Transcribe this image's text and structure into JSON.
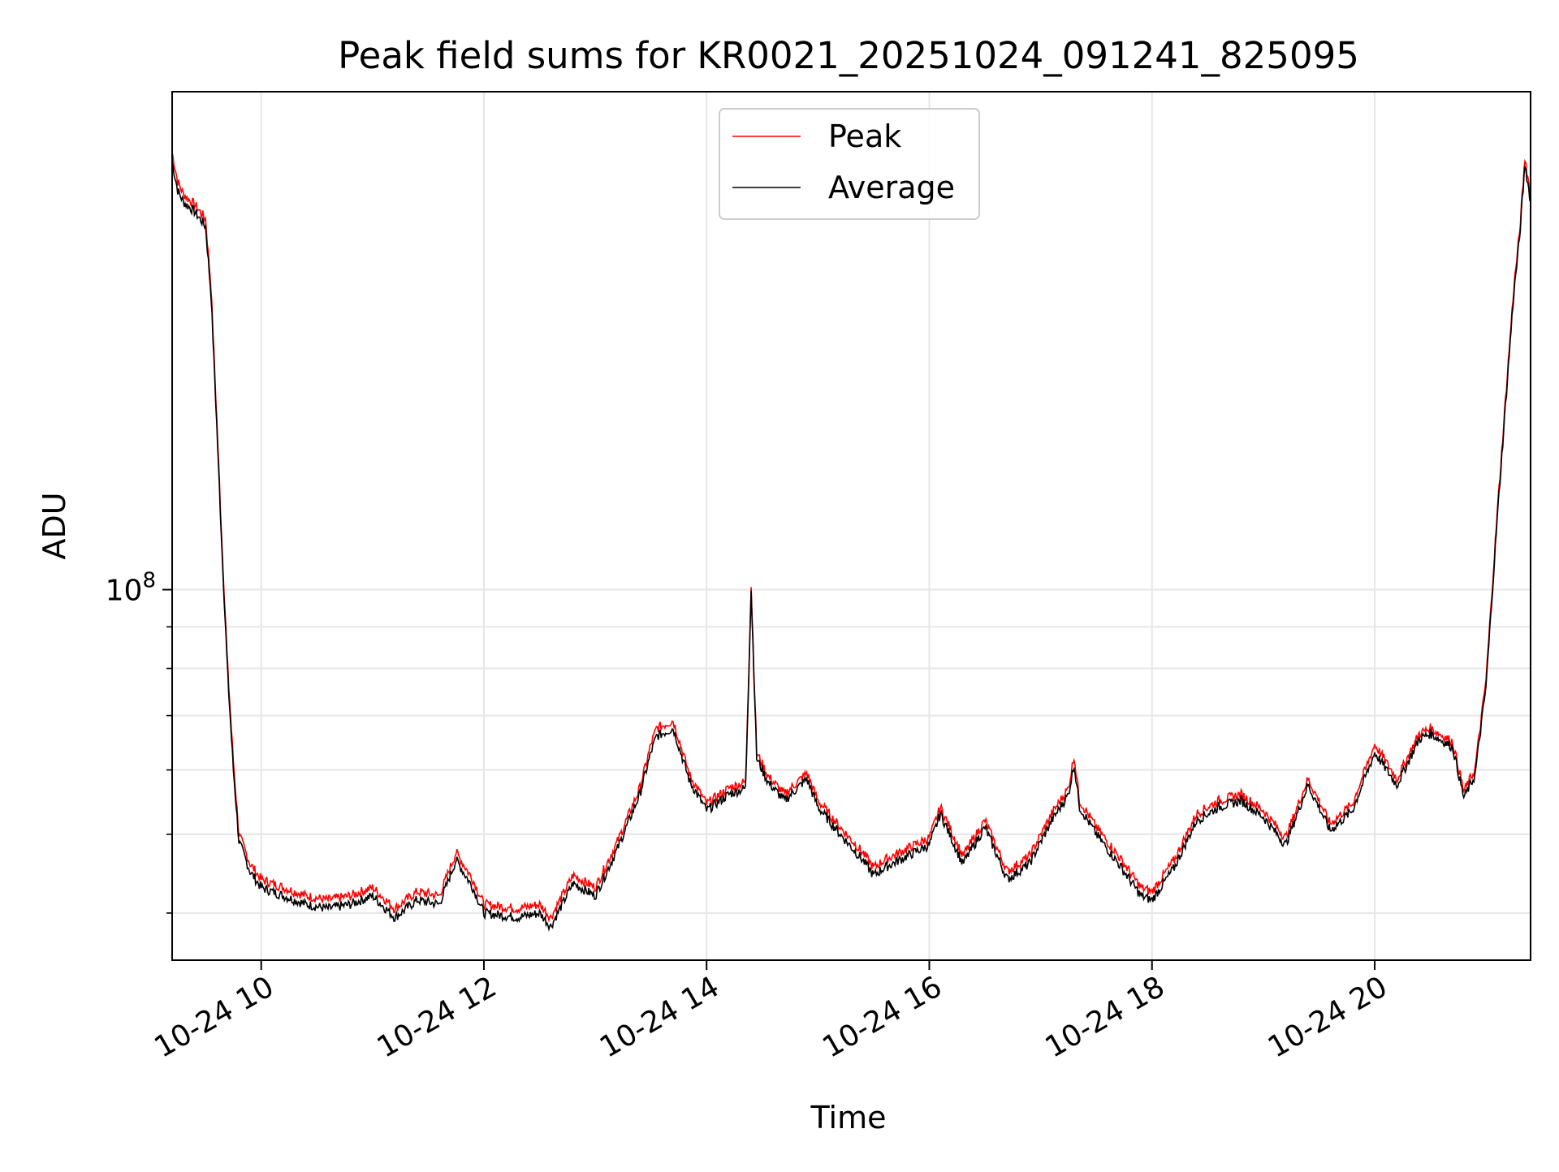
{
  "chart_data": {
    "type": "line",
    "title": "Peak field sums for KR0021_20251024_091241_825095",
    "xlabel": "Time",
    "ylabel": "ADU",
    "yscale": "log",
    "xlim": [
      9.2,
      21.4
    ],
    "ylim": [
      35000000.0,
      410000000.0
    ],
    "grid": true,
    "legend_position": "upper center",
    "x_ticks": [
      {
        "value": 10,
        "label": "10-24 10"
      },
      {
        "value": 12,
        "label": "10-24 12"
      },
      {
        "value": 14,
        "label": "10-24 14"
      },
      {
        "value": 16,
        "label": "10-24 16"
      },
      {
        "value": 18,
        "label": "10-24 18"
      },
      {
        "value": 20,
        "label": "10-24 20"
      }
    ],
    "y_major_tick": {
      "value": 100000000,
      "base": "10",
      "exp": "8"
    },
    "y_minor_ticks": [
      40000000,
      50000000,
      60000000,
      70000000,
      80000000,
      90000000
    ],
    "series": [
      {
        "name": "Peak",
        "color": "#ff0000"
      },
      {
        "name": "Average",
        "color": "#000000"
      }
    ],
    "x": [
      9.2,
      9.25,
      9.3,
      9.35,
      9.4,
      9.5,
      9.55,
      9.6,
      9.65,
      9.7,
      9.75,
      9.8,
      9.9,
      10.0,
      10.2,
      10.4,
      10.6,
      10.8,
      11.0,
      11.2,
      11.4,
      11.6,
      11.75,
      11.9,
      12.0,
      12.3,
      12.5,
      12.6,
      12.8,
      13.0,
      13.2,
      13.4,
      13.5,
      13.55,
      13.7,
      13.85,
      14.0,
      14.2,
      14.35,
      14.4,
      14.45,
      14.55,
      14.7,
      14.9,
      15.0,
      15.2,
      15.4,
      15.5,
      15.6,
      15.8,
      16.0,
      16.1,
      16.3,
      16.5,
      16.7,
      16.9,
      17.1,
      17.25,
      17.3,
      17.35,
      17.5,
      17.7,
      17.9,
      18.0,
      18.2,
      18.4,
      18.6,
      18.8,
      19.0,
      19.2,
      19.4,
      19.5,
      19.6,
      19.8,
      20.0,
      20.2,
      20.4,
      20.5,
      20.7,
      20.8,
      20.9,
      21.0,
      21.1,
      21.2,
      21.25,
      21.3,
      21.35,
      21.4
    ],
    "average_values": [
      336000000,
      310000000,
      300000000,
      296000000,
      292000000,
      280000000,
      230000000,
      160000000,
      110000000,
      78000000,
      60000000,
      49000000,
      45000000,
      43000000,
      42000000,
      41000000,
      40500000,
      41000000,
      42000000,
      39500000,
      41500000,
      41000000,
      46500000,
      43000000,
      40000000,
      39500000,
      40000000,
      38500000,
      43500000,
      42000000,
      48000000,
      56000000,
      63000000,
      66000000,
      67500000,
      58000000,
      53500000,
      56000000,
      57000000,
      100000000,
      62000000,
      58000000,
      55000000,
      58500000,
      54000000,
      50000000,
      46500000,
      44500000,
      45500000,
      47000000,
      48500000,
      53000000,
      46000000,
      51000000,
      44000000,
      46000000,
      52000000,
      56000000,
      61000000,
      54000000,
      50000000,
      46000000,
      42000000,
      41500000,
      45500000,
      52000000,
      54000000,
      55000000,
      52500000,
      48500000,
      57500000,
      54000000,
      50500000,
      53500000,
      63000000,
      57500000,
      65500000,
      66500000,
      64000000,
      55500000,
      59000000,
      76000000,
      122000000,
      188000000,
      232000000,
      270000000,
      334000000,
      300000000
    ],
    "peak_values": [
      345000000,
      318000000,
      307000000,
      302000000,
      298000000,
      286000000,
      235000000,
      163000000,
      112000000,
      79500000,
      61500000,
      50000000,
      46000000,
      44000000,
      43000000,
      42000000,
      41500000,
      42000000,
      43000000,
      40500000,
      42500000,
      42000000,
      47500000,
      44000000,
      41000000,
      40500000,
      41000000,
      39500000,
      44500000,
      43000000,
      49000000,
      57000000,
      64500000,
      67500000,
      69000000,
      59000000,
      54500000,
      57000000,
      58000000,
      101000000,
      63000000,
      59000000,
      56000000,
      59500000,
      55000000,
      51000000,
      47500000,
      45500000,
      46500000,
      48000000,
      49500000,
      54000000,
      47000000,
      52000000,
      45000000,
      47000000,
      53000000,
      57000000,
      62500000,
      55000000,
      51000000,
      47000000,
      43000000,
      42500000,
      46500000,
      53000000,
      55000000,
      56000000,
      53500000,
      49500000,
      58500000,
      55000000,
      51500000,
      54500000,
      64500000,
      58500000,
      66500000,
      67500000,
      65000000,
      56500000,
      60000000,
      77500000,
      124000000,
      191000000,
      236000000,
      274000000,
      340000000,
      305000000
    ]
  }
}
